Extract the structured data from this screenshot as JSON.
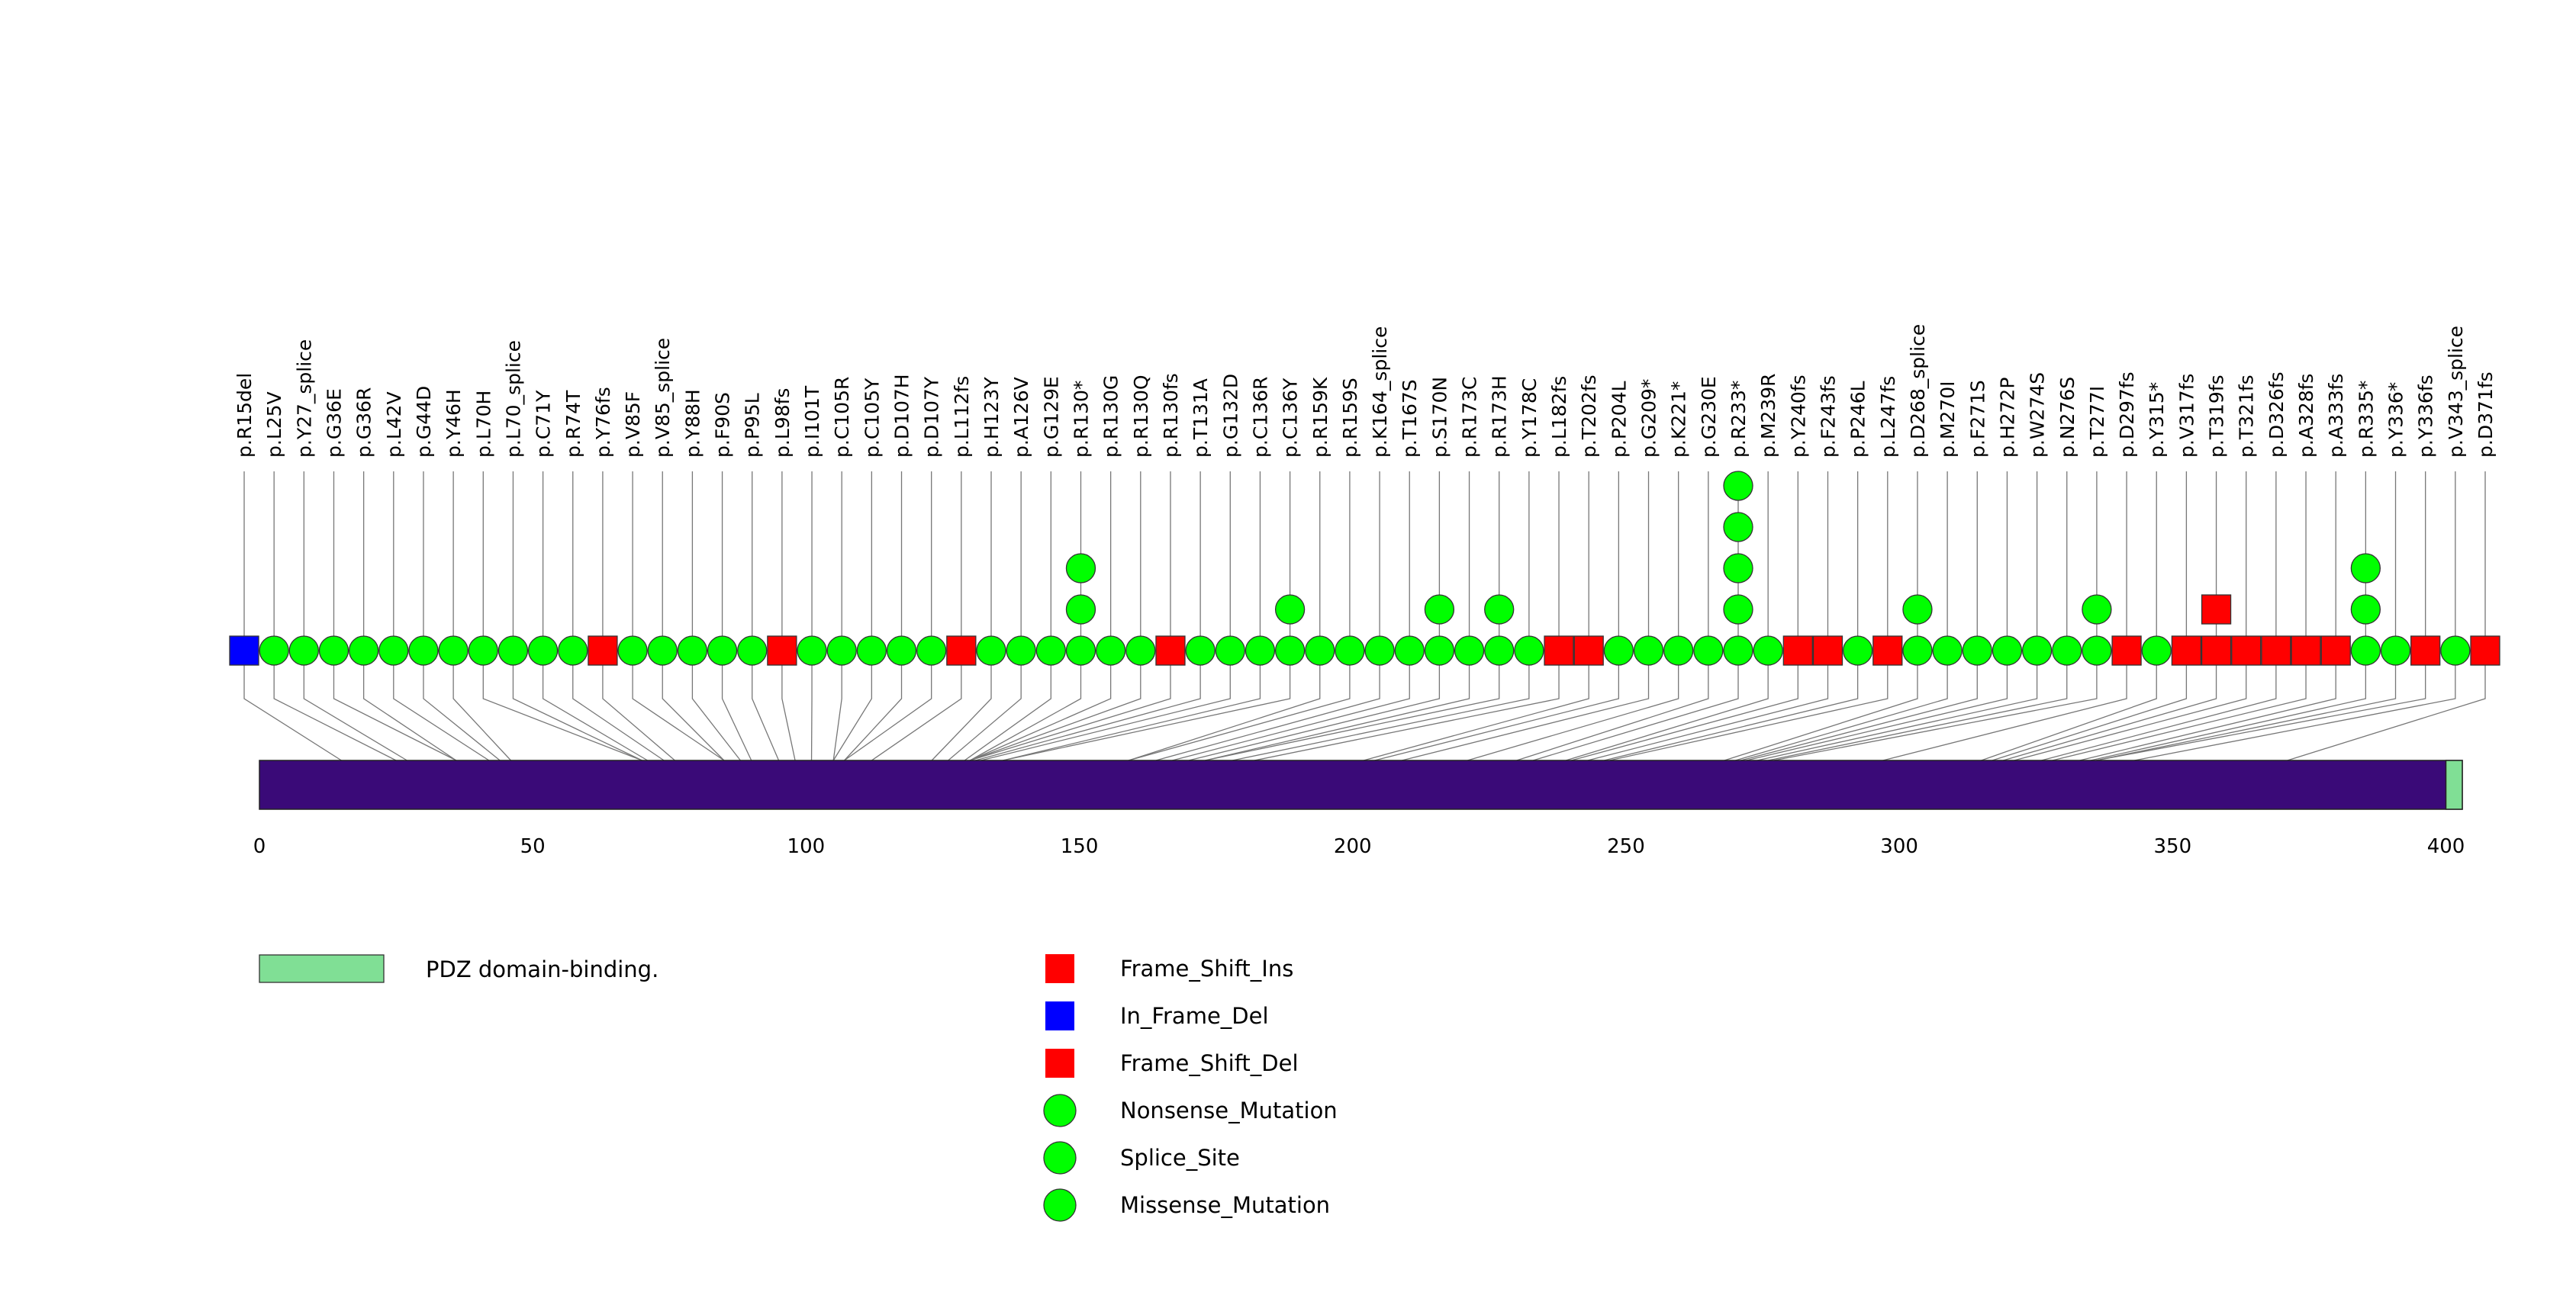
{
  "chart_data": {
    "type": "lollipop",
    "xlabel": "",
    "ylabel": "",
    "xlim": [
      0,
      403
    ],
    "protein_length": 403,
    "x_ticks": [
      0,
      50,
      100,
      150,
      200,
      250,
      300,
      350,
      400
    ],
    "domains": [
      {
        "name": "PDZ domain-binding.",
        "start": 400,
        "end": 403,
        "color": "#80df95"
      }
    ],
    "protein_color": "#3a0a78",
    "mutation_types": [
      {
        "name": "Frame_Shift_Ins",
        "shape": "square",
        "color": "#ff0000"
      },
      {
        "name": "In_Frame_Del",
        "shape": "square",
        "color": "#0000ff"
      },
      {
        "name": "Frame_Shift_Del",
        "shape": "square",
        "color": "#ff0000"
      },
      {
        "name": "Nonsense_Mutation",
        "shape": "circle",
        "color": "#00ff00"
      },
      {
        "name": "Splice_Site",
        "shape": "circle",
        "color": "#00ff00"
      },
      {
        "name": "Missense_Mutation",
        "shape": "circle",
        "color": "#00ff00"
      }
    ],
    "mutations": [
      {
        "label": "p.R15del",
        "position": 15,
        "type": "In_Frame_Del",
        "count": 1
      },
      {
        "label": "p.L25V",
        "position": 25,
        "type": "Missense_Mutation",
        "count": 1
      },
      {
        "label": "p.Y27_splice",
        "position": 27,
        "type": "Splice_Site",
        "count": 1
      },
      {
        "label": "p.G36E",
        "position": 36,
        "type": "Missense_Mutation",
        "count": 1
      },
      {
        "label": "p.G36R",
        "position": 36,
        "type": "Missense_Mutation",
        "count": 1
      },
      {
        "label": "p.L42V",
        "position": 42,
        "type": "Missense_Mutation",
        "count": 1
      },
      {
        "label": "p.G44D",
        "position": 44,
        "type": "Missense_Mutation",
        "count": 1
      },
      {
        "label": "p.Y46H",
        "position": 46,
        "type": "Missense_Mutation",
        "count": 1
      },
      {
        "label": "p.L70H",
        "position": 70,
        "type": "Missense_Mutation",
        "count": 1
      },
      {
        "label": "p.L70_splice",
        "position": 70,
        "type": "Splice_Site",
        "count": 1
      },
      {
        "label": "p.C71Y",
        "position": 71,
        "type": "Missense_Mutation",
        "count": 1
      },
      {
        "label": "p.R74T",
        "position": 74,
        "type": "Missense_Mutation",
        "count": 1
      },
      {
        "label": "p.Y76fs",
        "position": 76,
        "type": "Frame_Shift_Del",
        "count": 1
      },
      {
        "label": "p.V85F",
        "position": 85,
        "type": "Missense_Mutation",
        "count": 1
      },
      {
        "label": "p.V85_splice",
        "position": 85,
        "type": "Splice_Site",
        "count": 1
      },
      {
        "label": "p.Y88H",
        "position": 88,
        "type": "Missense_Mutation",
        "count": 1
      },
      {
        "label": "p.F90S",
        "position": 90,
        "type": "Missense_Mutation",
        "count": 1
      },
      {
        "label": "p.P95L",
        "position": 95,
        "type": "Missense_Mutation",
        "count": 1
      },
      {
        "label": "p.L98fs",
        "position": 98,
        "type": "Frame_Shift_Del",
        "count": 1
      },
      {
        "label": "p.I101T",
        "position": 101,
        "type": "Missense_Mutation",
        "count": 1
      },
      {
        "label": "p.C105R",
        "position": 105,
        "type": "Missense_Mutation",
        "count": 1
      },
      {
        "label": "p.C105Y",
        "position": 105,
        "type": "Missense_Mutation",
        "count": 1
      },
      {
        "label": "p.D107H",
        "position": 107,
        "type": "Missense_Mutation",
        "count": 1
      },
      {
        "label": "p.D107Y",
        "position": 107,
        "type": "Missense_Mutation",
        "count": 1
      },
      {
        "label": "p.L112fs",
        "position": 112,
        "type": "Frame_Shift_Del",
        "count": 1
      },
      {
        "label": "p.H123Y",
        "position": 123,
        "type": "Missense_Mutation",
        "count": 1
      },
      {
        "label": "p.A126V",
        "position": 126,
        "type": "Missense_Mutation",
        "count": 1
      },
      {
        "label": "p.G129E",
        "position": 129,
        "type": "Missense_Mutation",
        "count": 1
      },
      {
        "label": "p.R130*",
        "position": 130,
        "type": "Nonsense_Mutation",
        "count": 3
      },
      {
        "label": "p.R130G",
        "position": 130,
        "type": "Missense_Mutation",
        "count": 1
      },
      {
        "label": "p.R130Q",
        "position": 130,
        "type": "Missense_Mutation",
        "count": 1
      },
      {
        "label": "p.R130fs",
        "position": 130,
        "type": "Frame_Shift_Del",
        "count": 1
      },
      {
        "label": "p.T131A",
        "position": 131,
        "type": "Missense_Mutation",
        "count": 1
      },
      {
        "label": "p.G132D",
        "position": 132,
        "type": "Missense_Mutation",
        "count": 1
      },
      {
        "label": "p.C136R",
        "position": 136,
        "type": "Missense_Mutation",
        "count": 1
      },
      {
        "label": "p.C136Y",
        "position": 136,
        "type": "Missense_Mutation",
        "count": 2
      },
      {
        "label": "p.R159K",
        "position": 159,
        "type": "Missense_Mutation",
        "count": 1
      },
      {
        "label": "p.R159S",
        "position": 159,
        "type": "Missense_Mutation",
        "count": 1
      },
      {
        "label": "p.K164_splice",
        "position": 164,
        "type": "Splice_Site",
        "count": 1
      },
      {
        "label": "p.T167S",
        "position": 167,
        "type": "Missense_Mutation",
        "count": 1
      },
      {
        "label": "p.S170N",
        "position": 170,
        "type": "Missense_Mutation",
        "count": 2
      },
      {
        "label": "p.R173C",
        "position": 173,
        "type": "Missense_Mutation",
        "count": 1
      },
      {
        "label": "p.R173H",
        "position": 173,
        "type": "Missense_Mutation",
        "count": 2
      },
      {
        "label": "p.Y178C",
        "position": 178,
        "type": "Missense_Mutation",
        "count": 1
      },
      {
        "label": "p.L182fs",
        "position": 182,
        "type": "Frame_Shift_Del",
        "count": 1
      },
      {
        "label": "p.T202fs",
        "position": 202,
        "type": "Frame_Shift_Del",
        "count": 1
      },
      {
        "label": "p.P204L",
        "position": 204,
        "type": "Missense_Mutation",
        "count": 1
      },
      {
        "label": "p.G209*",
        "position": 209,
        "type": "Nonsense_Mutation",
        "count": 1
      },
      {
        "label": "p.K221*",
        "position": 221,
        "type": "Nonsense_Mutation",
        "count": 1
      },
      {
        "label": "p.G230E",
        "position": 230,
        "type": "Missense_Mutation",
        "count": 1
      },
      {
        "label": "p.R233*",
        "position": 233,
        "type": "Nonsense_Mutation",
        "count": 5
      },
      {
        "label": "p.M239R",
        "position": 239,
        "type": "Missense_Mutation",
        "count": 1
      },
      {
        "label": "p.Y240fs",
        "position": 240,
        "type": "Frame_Shift_Del",
        "count": 1
      },
      {
        "label": "p.F243fs",
        "position": 243,
        "type": "Frame_Shift_Del",
        "count": 1
      },
      {
        "label": "p.P246L",
        "position": 246,
        "type": "Missense_Mutation",
        "count": 1
      },
      {
        "label": "p.L247fs",
        "position": 247,
        "type": "Frame_Shift_Del",
        "count": 1
      },
      {
        "label": "p.D268_splice",
        "position": 268,
        "type": "Splice_Site",
        "count": 2
      },
      {
        "label": "p.M270I",
        "position": 270,
        "type": "Missense_Mutation",
        "count": 1
      },
      {
        "label": "p.F271S",
        "position": 271,
        "type": "Missense_Mutation",
        "count": 1
      },
      {
        "label": "p.H272P",
        "position": 272,
        "type": "Missense_Mutation",
        "count": 1
      },
      {
        "label": "p.W274S",
        "position": 274,
        "type": "Missense_Mutation",
        "count": 1
      },
      {
        "label": "p.N276S",
        "position": 276,
        "type": "Missense_Mutation",
        "count": 1
      },
      {
        "label": "p.T277I",
        "position": 277,
        "type": "Missense_Mutation",
        "count": 2
      },
      {
        "label": "p.D297fs",
        "position": 297,
        "type": "Frame_Shift_Del",
        "count": 1
      },
      {
        "label": "p.Y315*",
        "position": 315,
        "type": "Nonsense_Mutation",
        "count": 1
      },
      {
        "label": "p.V317fs",
        "position": 317,
        "type": "Frame_Shift_Del",
        "count": 1
      },
      {
        "label": "p.T319fs",
        "position": 319,
        "type": "Frame_Shift_Ins",
        "count": 2
      },
      {
        "label": "p.T321fs",
        "position": 321,
        "type": "Frame_Shift_Del",
        "count": 1
      },
      {
        "label": "p.D326fs",
        "position": 326,
        "type": "Frame_Shift_Del",
        "count": 1
      },
      {
        "label": "p.A328fs",
        "position": 328,
        "type": "Frame_Shift_Del",
        "count": 1
      },
      {
        "label": "p.A333fs",
        "position": 333,
        "type": "Frame_Shift_Del",
        "count": 1
      },
      {
        "label": "p.R335*",
        "position": 335,
        "type": "Nonsense_Mutation",
        "count": 3
      },
      {
        "label": "p.Y336*",
        "position": 336,
        "type": "Nonsense_Mutation",
        "count": 1
      },
      {
        "label": "p.Y336fs",
        "position": 336,
        "type": "Frame_Shift_Del",
        "count": 1
      },
      {
        "label": "p.V343_splice",
        "position": 343,
        "type": "Splice_Site",
        "count": 1
      },
      {
        "label": "p.D371fs",
        "position": 371,
        "type": "Frame_Shift_Del",
        "count": 1
      }
    ]
  }
}
